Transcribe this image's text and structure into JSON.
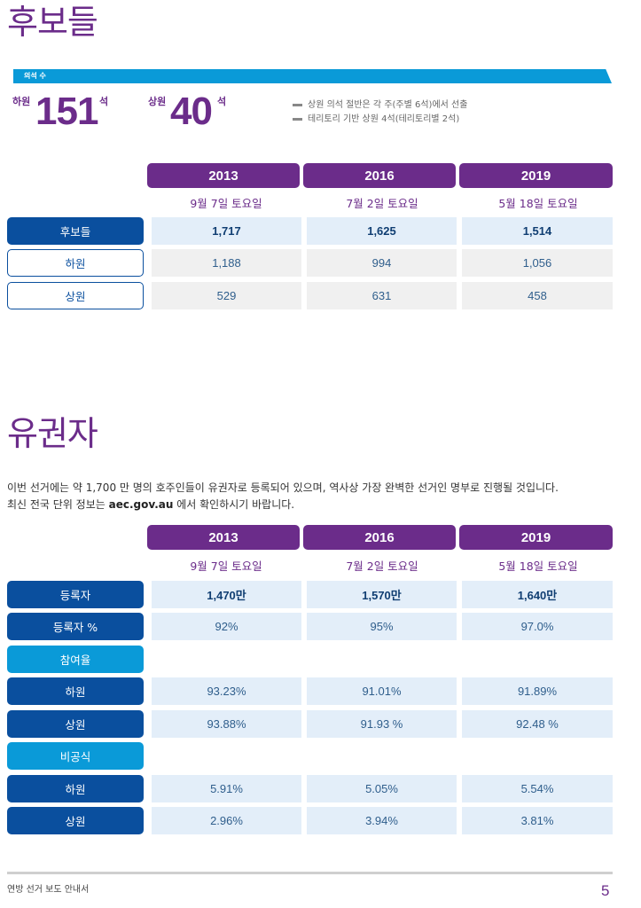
{
  "candidates": {
    "title": "후보들",
    "seat_bar_label": "의석 수",
    "house": {
      "label": "하원",
      "value": "151",
      "unit": "석"
    },
    "senate": {
      "label": "상원",
      "value": "40",
      "unit": "석"
    },
    "notes": [
      "상원 의석 절반은 각 주(주별 6석)에서 선출",
      "테리토리 기반 상원 4석(테리토리별 2석)"
    ],
    "columns": [
      {
        "year": "2013",
        "date": "9월 7일 토요일"
      },
      {
        "year": "2016",
        "date": "7월 2일 토요일"
      },
      {
        "year": "2019",
        "date": "5월 18일 토요일"
      }
    ],
    "rows": [
      {
        "label": "후보들",
        "values": [
          "1,717",
          "1,625",
          "1,514"
        ]
      },
      {
        "label": "하원",
        "values": [
          "1,188",
          "994",
          "1,056"
        ]
      },
      {
        "label": "상원",
        "values": [
          "529",
          "631",
          "458"
        ]
      }
    ]
  },
  "voters": {
    "title": "유권자",
    "para_line1": "이번 선거에는 약 1,700 만 명의 호주인들이 유권자로 등록되어 있으며, 역사상 가장 완벽한 선거인 명부로 진행될 것입니다.",
    "para_line2_pre": "최신 전국 단위 정보는 ",
    "para_link": "aec.gov.au",
    "para_line2_post": " 에서 확인하시기 바랍니다.",
    "columns": [
      {
        "year": "2013",
        "date": "9월 7일 토요일"
      },
      {
        "year": "2016",
        "date": "7월 2일 토요일"
      },
      {
        "year": "2019",
        "date": "5월 18일 토요일"
      }
    ],
    "rows": [
      {
        "label": "등록자",
        "values": [
          "1,470만",
          "1,570만",
          "1,640만"
        ]
      },
      {
        "label": "등록자 %",
        "values": [
          "92%",
          "95%",
          "97.0%"
        ]
      },
      {
        "label": "참여율",
        "values": []
      },
      {
        "label": "하원",
        "values": [
          "93.23%",
          "91.01%",
          "91.89%"
        ]
      },
      {
        "label": "상원",
        "values": [
          "93.88%",
          "91.93 %",
          "92.48 %"
        ]
      },
      {
        "label": "비공식",
        "values": []
      },
      {
        "label": "하원",
        "values": [
          "5.91%",
          "5.05%",
          "5.54%"
        ]
      },
      {
        "label": "상원",
        "values": [
          "2.96%",
          "3.94%",
          "3.81%"
        ]
      }
    ]
  },
  "footer": {
    "text": "연방 선거 보도 안내서",
    "page": "5"
  },
  "colors": {
    "purple": "#6b2c8a",
    "dark_blue": "#0a4f9e",
    "light_blue": "#0a9ad8",
    "cell_blue": "#e3eef9",
    "cell_grey": "#f0f0f0"
  }
}
